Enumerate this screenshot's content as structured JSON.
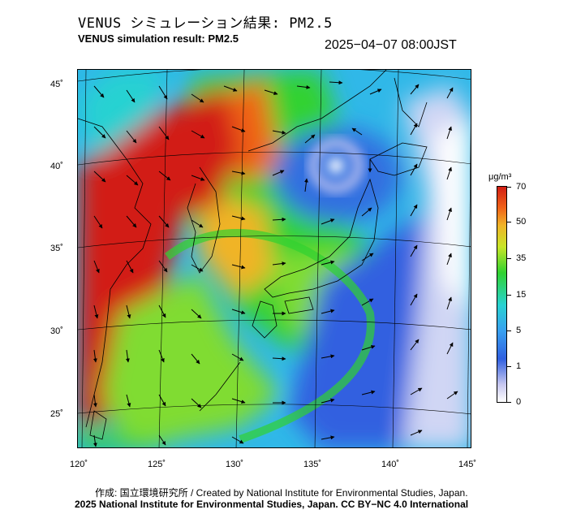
{
  "header": {
    "title_ja": "VENUS シミュレーション結果: PM2.5",
    "title_en": "VENUS simulation result: PM2.5",
    "datetime": "2025−04−07 08:00JST"
  },
  "map": {
    "lon_labels": [
      "120˚",
      "125˚",
      "130˚",
      "135˚",
      "140˚",
      "145˚"
    ],
    "lat_labels": [
      "45˚",
      "40˚",
      "35˚",
      "30˚",
      "25˚"
    ]
  },
  "colorbar": {
    "unit": "μg/m³",
    "labels": [
      "70",
      "50",
      "35",
      "15",
      "5",
      "1",
      "0"
    ],
    "colors": {
      "high": "#d21e14",
      "mid_high": "#f0b428",
      "mid": "#30d230",
      "low_mid": "#28d2d2",
      "low": "#3060e0",
      "very_low": "#c8c8f0",
      "zero": "#ffffff"
    }
  },
  "footer": {
    "credit": "作成: 国立環境研究所 / Created by National Institute for Environmental Studies, Japan.",
    "copyright": "2025 National Institute for Environmental Studies, Japan. CC BY−NC 4.0 International"
  }
}
